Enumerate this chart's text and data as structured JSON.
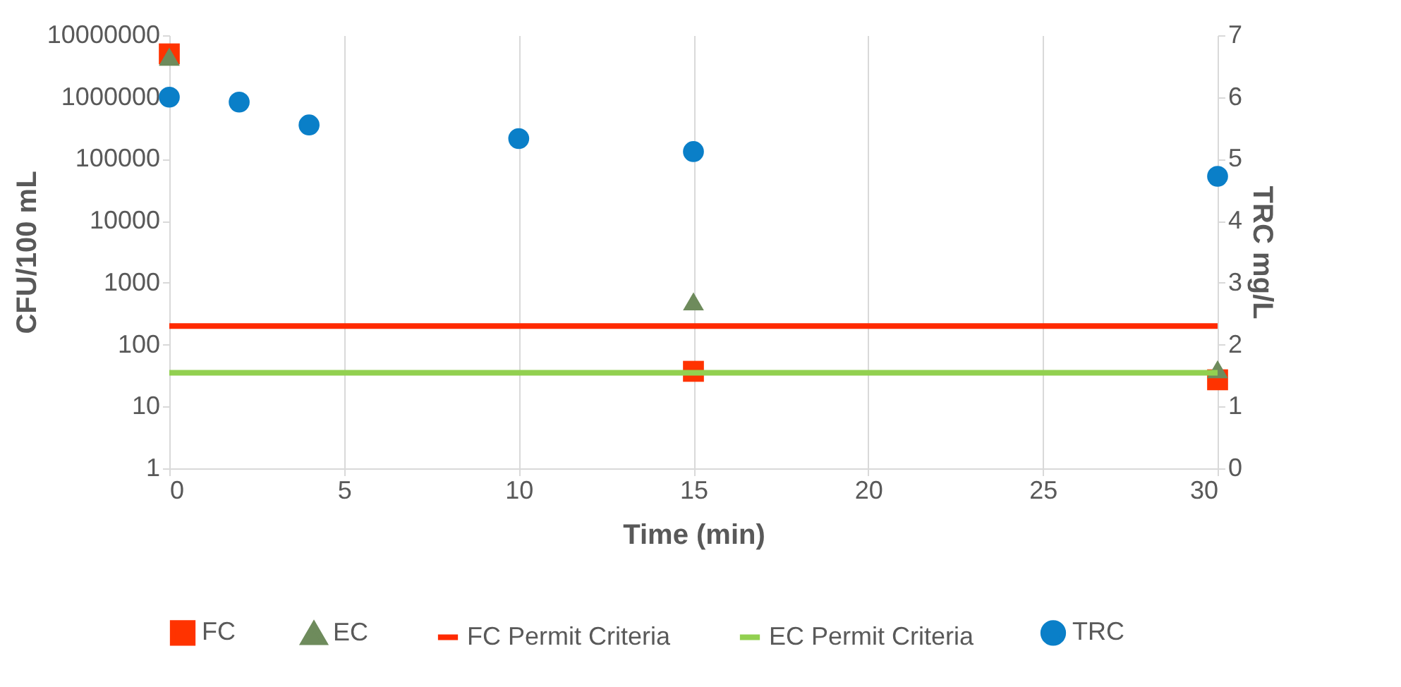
{
  "chart_data": {
    "type": "scatter",
    "xlabel": "Time (min)",
    "ylabel": "CFU/100 mL",
    "y2label": "TRC mg/L",
    "xlim": [
      0,
      30
    ],
    "xticks": [
      0,
      5,
      10,
      15,
      20,
      25,
      30
    ],
    "ylim": [
      1,
      10000000
    ],
    "yticks": [
      1,
      10,
      100,
      1000,
      10000,
      100000,
      1000000,
      10000000
    ],
    "log": "y",
    "y2lim": [
      0,
      7
    ],
    "y2ticks": [
      0,
      1,
      2,
      3,
      4,
      5,
      6,
      7
    ],
    "grid": "x",
    "legend": "bottom",
    "series": [
      {
        "name": "FC",
        "color": "#ff3300",
        "marker": "square",
        "x": [
          0,
          15,
          30
        ],
        "values": [
          5000000,
          37,
          27
        ]
      },
      {
        "name": "EC",
        "color": "#6e8b5c",
        "marker": "triangle",
        "x": [
          0,
          15,
          30
        ],
        "values": [
          4500000,
          500,
          40
        ]
      },
      {
        "name": "TRC",
        "color": "#0a7fc8",
        "marker": "circle",
        "axis": "y2",
        "x": [
          0,
          2,
          4,
          10,
          15,
          30
        ],
        "values": [
          6.0,
          5.92,
          5.55,
          5.33,
          5.12,
          4.72
        ]
      }
    ],
    "ref_lines": [
      {
        "axis": "y",
        "value": 200,
        "label": "FC Permit Criteria",
        "color": "#ff2a00"
      },
      {
        "axis": "y",
        "value": 35,
        "label": "EC Permit Criteria",
        "color": "#92d050"
      }
    ]
  }
}
